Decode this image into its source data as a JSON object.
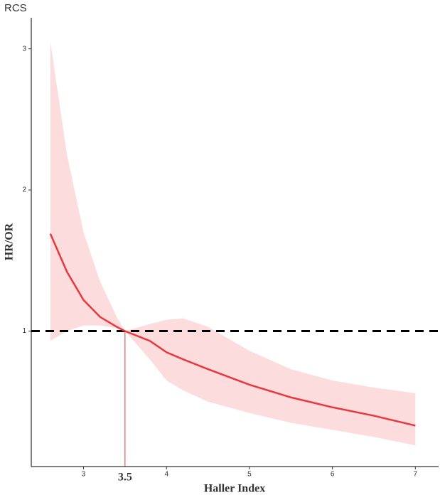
{
  "chart_data": {
    "type": "line",
    "title": "RCS",
    "xlabel": "Haller Index",
    "ylabel": "HR/OR",
    "x": [
      2.6,
      2.8,
      3.0,
      3.2,
      3.4,
      3.5,
      3.8,
      4.0,
      4.2,
      4.5,
      5.0,
      5.5,
      6.0,
      6.5,
      7.0
    ],
    "values": [
      1.69,
      1.42,
      1.22,
      1.1,
      1.03,
      1.0,
      0.93,
      0.85,
      0.8,
      0.73,
      0.62,
      0.53,
      0.46,
      0.4,
      0.33
    ],
    "ci_upper": [
      3.05,
      2.25,
      1.7,
      1.35,
      1.1,
      1.0,
      1.05,
      1.08,
      1.09,
      1.03,
      0.86,
      0.73,
      0.65,
      0.6,
      0.56
    ],
    "ci_lower": [
      0.93,
      1.0,
      1.04,
      1.04,
      1.02,
      1.0,
      0.8,
      0.65,
      0.58,
      0.5,
      0.42,
      0.35,
      0.3,
      0.25,
      0.19
    ],
    "color": "#e8383d",
    "band_color": "#fcdcdc",
    "reference_y": 1,
    "reference_x": 3.5,
    "xlim": [
      2.37,
      7.28
    ],
    "ylim": [
      0.04,
      3.22
    ],
    "xticks": [
      3,
      4,
      5,
      6,
      7
    ],
    "yticks": [
      1,
      2,
      3
    ],
    "grid": false
  }
}
